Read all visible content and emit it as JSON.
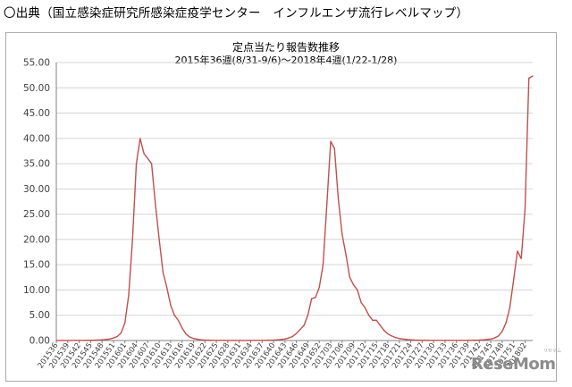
{
  "source_line": "〇出典（国立感染症研究所感染症疫学センター　インフルエンザ流行レベルマップ）",
  "watermark": {
    "text": "ReseMom",
    "sub": "リセマム"
  },
  "colors": {
    "series": "#c0504d",
    "grid": "#d4d4d4",
    "axis": "#808080",
    "tick_text": "#404040"
  },
  "chart_data": {
    "type": "line",
    "title": "定点当たり報告数推移",
    "subtitle": "2015年36週(8/31-9/6)～2018年4週(1/22-1/28)",
    "xlabel": "",
    "ylabel": "",
    "ylim": [
      0,
      55
    ],
    "yticks": [
      "0.00",
      "5.00",
      "10.00",
      "15.00",
      "20.00",
      "25.00",
      "30.00",
      "35.00",
      "40.00",
      "45.00",
      "50.00",
      "55.00"
    ],
    "grid": true,
    "legend": "none",
    "x_start": 201536,
    "xtick_labels": [
      "201536",
      "201539",
      "201542",
      "201545",
      "201548",
      "201551",
      "201601",
      "201604",
      "201607",
      "201610",
      "201613",
      "201616",
      "201619",
      "201622",
      "201625",
      "201628",
      "201631",
      "201634",
      "201637",
      "201640",
      "201643",
      "201646",
      "201649",
      "201652",
      "201703",
      "201706",
      "201709",
      "201712",
      "201715",
      "201718",
      "201721",
      "201724",
      "201727",
      "201730",
      "201733",
      "201736",
      "201739",
      "201742",
      "201745",
      "201748",
      "201751",
      "201802"
    ],
    "values": [
      0.02,
      0.02,
      0.02,
      0.02,
      0.02,
      0.03,
      0.03,
      0.04,
      0.05,
      0.06,
      0.08,
      0.1,
      0.13,
      0.2,
      0.3,
      0.5,
      0.8,
      1.5,
      3.5,
      9.0,
      20.0,
      35.0,
      39.97,
      37.0,
      36.0,
      35.0,
      27.0,
      20.0,
      13.5,
      10.5,
      7.0,
      5.0,
      4.0,
      2.5,
      1.3,
      0.7,
      0.4,
      0.25,
      0.15,
      0.1,
      0.08,
      0.05,
      0.04,
      0.03,
      0.03,
      0.02,
      0.02,
      0.02,
      0.02,
      0.02,
      0.02,
      0.03,
      0.03,
      0.03,
      0.04,
      0.05,
      0.07,
      0.1,
      0.15,
      0.2,
      0.3,
      0.5,
      0.8,
      1.4,
      2.2,
      3.0,
      5.0,
      8.3,
      8.5,
      10.5,
      15.0,
      27.0,
      39.41,
      38.0,
      28.0,
      21.0,
      17.0,
      12.5,
      11.0,
      10.0,
      7.5,
      6.5,
      5.0,
      4.0,
      4.0,
      3.0,
      2.0,
      1.3,
      0.9,
      0.6,
      0.4,
      0.3,
      0.2,
      0.15,
      0.1,
      0.08,
      0.06,
      0.05,
      0.04,
      0.04,
      0.03,
      0.03,
      0.03,
      0.03,
      0.03,
      0.03,
      0.03,
      0.04,
      0.04,
      0.05,
      0.07,
      0.1,
      0.15,
      0.2,
      0.3,
      0.5,
      0.9,
      1.8,
      3.5,
      6.5,
      12.0,
      17.7,
      16.2,
      26.0,
      51.9,
      52.35
    ]
  }
}
